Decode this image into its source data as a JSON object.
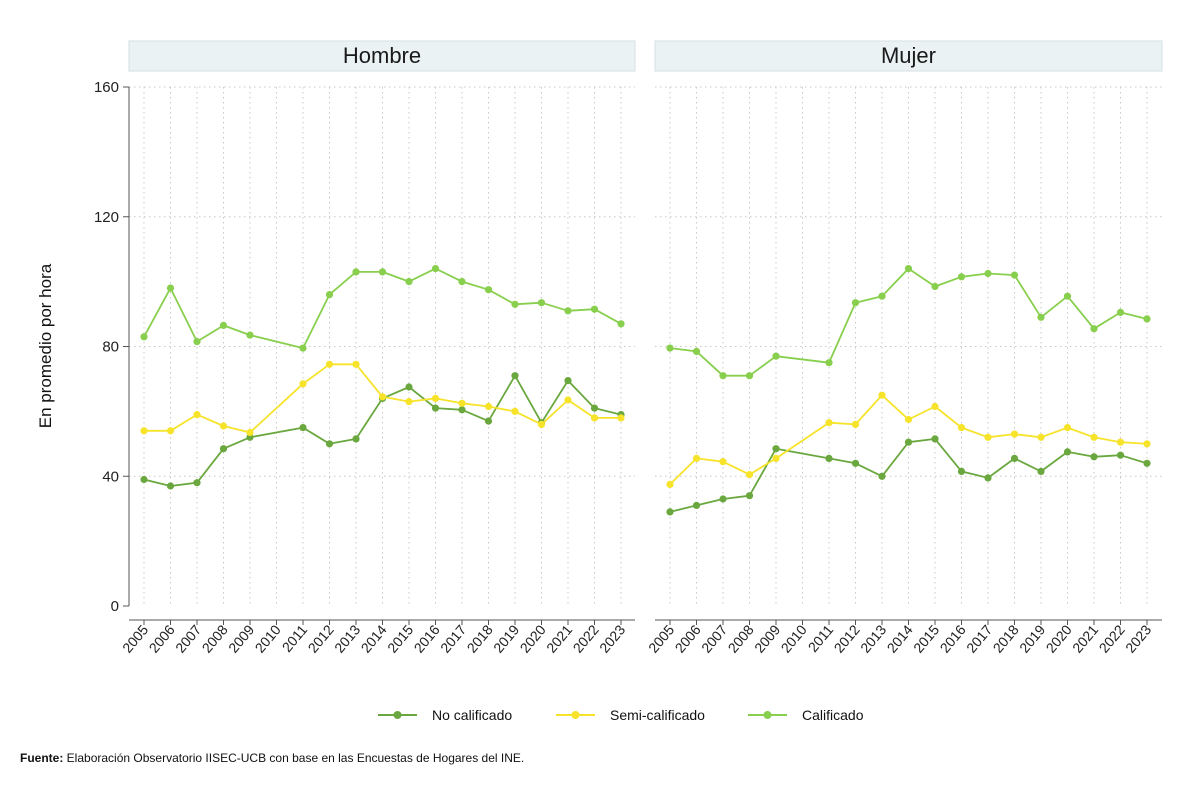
{
  "chart_data": {
    "type": "line",
    "ylabel": "En promedio por hora",
    "ylim": [
      0,
      160
    ],
    "yticks": [
      0,
      40,
      80,
      120,
      160
    ],
    "grid": true,
    "legend_position": "bottom",
    "years": [
      "2005",
      "2006",
      "2007",
      "2008",
      "2009",
      "2010",
      "2011",
      "2012",
      "2013",
      "2014",
      "2015",
      "2016",
      "2017",
      "2018",
      "2019",
      "2020",
      "2021",
      "2022",
      "2023"
    ],
    "series_styles": [
      {
        "name": "No calificado",
        "color": "#6aa83f"
      },
      {
        "name": "Semi-calificado",
        "color": "#f6e32a"
      },
      {
        "name": "Calificado",
        "color": "#88cf4d"
      }
    ],
    "panels": [
      {
        "title": "Hombre",
        "series": [
          {
            "name": "No calificado",
            "values": [
              39,
              37,
              38,
              48.5,
              52,
              null,
              55,
              50,
              51.5,
              64,
              67.5,
              61,
              60.5,
              57,
              71,
              56.5,
              69.5,
              61,
              59
            ]
          },
          {
            "name": "Semi-calificado",
            "values": [
              54,
              54,
              59,
              55.5,
              53.5,
              null,
              68.5,
              74.5,
              74.5,
              64.5,
              63,
              64,
              62.5,
              61.5,
              60,
              56,
              63.5,
              58,
              58
            ]
          },
          {
            "name": "Calificado",
            "values": [
              83,
              98,
              81.5,
              86.5,
              83.5,
              null,
              79.5,
              96,
              103,
              103,
              100,
              104,
              100,
              97.5,
              93,
              93.5,
              91,
              91.5,
              87
            ]
          }
        ]
      },
      {
        "title": "Mujer",
        "series": [
          {
            "name": "No calificado",
            "values": [
              29,
              31,
              33,
              34,
              48.5,
              null,
              45.5,
              44,
              40,
              50.5,
              51.5,
              41.5,
              39.5,
              45.5,
              41.5,
              47.5,
              46,
              46.5,
              44
            ]
          },
          {
            "name": "Semi-calificado",
            "values": [
              37.5,
              45.5,
              44.5,
              40.5,
              45.5,
              null,
              56.5,
              56,
              65,
              57.5,
              61.5,
              55,
              52,
              53,
              52,
              55,
              52,
              50.5,
              50
            ]
          },
          {
            "name": "Calificado",
            "values": [
              79.5,
              78.5,
              71,
              71,
              77,
              null,
              75,
              93.5,
              95.5,
              104,
              98.5,
              101.5,
              102.5,
              102,
              89,
              95.5,
              85.5,
              90.5,
              88.5
            ]
          }
        ]
      }
    ]
  },
  "legend": [
    {
      "label": "No calificado"
    },
    {
      "label": "Semi-calificado"
    },
    {
      "label": "Calificado"
    }
  ],
  "source": {
    "label": "Fuente:",
    "text": " Elaboración Observatorio IISEC-UCB con base en las Encuestas de Hogares del INE."
  }
}
